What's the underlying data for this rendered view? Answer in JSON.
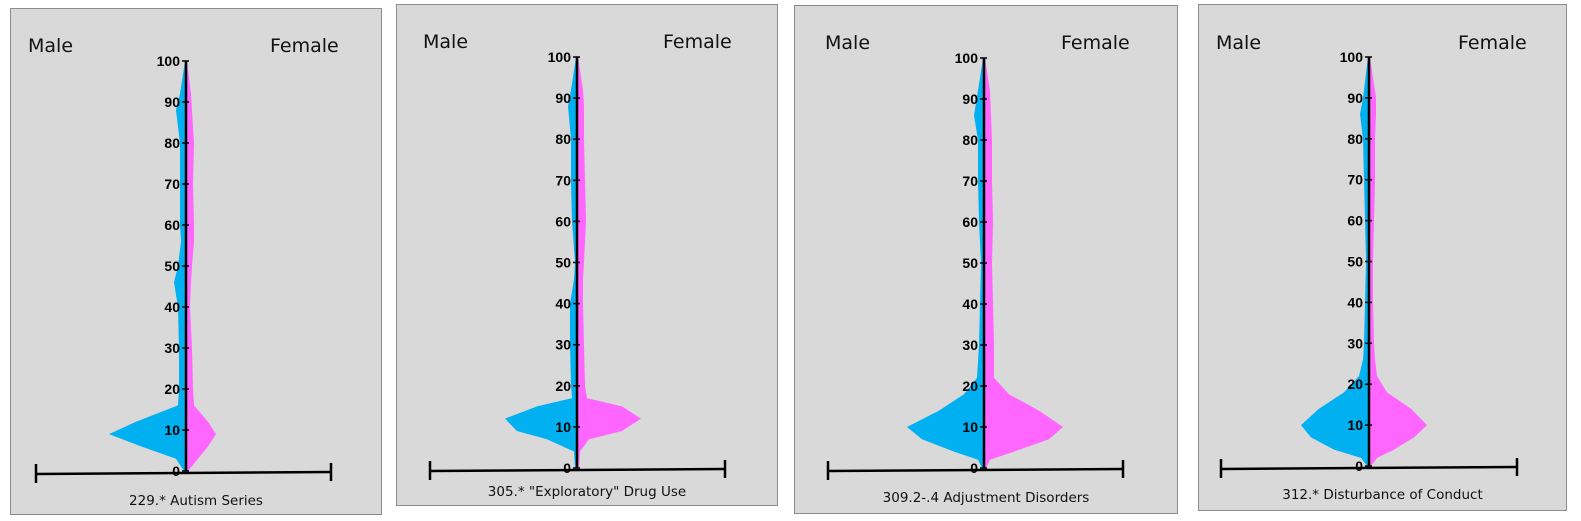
{
  "colors": {
    "male": "#00b0f0",
    "female": "#ff66ff",
    "background": "#d9d9d9",
    "axis": "#000000"
  },
  "chart_data": [
    {
      "type": "area",
      "title": "229.* Autism Series",
      "left_label": "Male",
      "right_label": "Female",
      "ylim": [
        0,
        100
      ],
      "yticks": [
        "0",
        "10",
        "20",
        "30",
        "40",
        "50",
        "60",
        "70",
        "80",
        "90",
        "100"
      ],
      "age": [
        0,
        3,
        6,
        9,
        12,
        16,
        20,
        30,
        40,
        46,
        50,
        56,
        60,
        70,
        80,
        88,
        92,
        100
      ],
      "series": [
        {
          "name": "Male",
          "values": [
            2,
            10,
            45,
            77,
            50,
            8,
            7,
            7,
            8,
            12,
            8,
            5,
            6,
            6,
            6,
            10,
            6,
            1
          ]
        },
        {
          "name": "Female",
          "values": [
            2,
            12,
            22,
            30,
            22,
            8,
            7,
            6,
            4,
            5,
            6,
            8,
            8,
            7,
            8,
            6,
            5,
            1
          ]
        }
      ]
    },
    {
      "type": "area",
      "title": "305.* \"Exploratory\" Drug Use",
      "left_label": "Male",
      "right_label": "Female",
      "ylim": [
        0,
        100
      ],
      "yticks": [
        "0",
        "10",
        "20",
        "30",
        "40",
        "50",
        "60",
        "70",
        "80",
        "90",
        "100"
      ],
      "age": [
        0,
        4,
        7,
        9,
        12,
        15,
        17,
        20,
        30,
        40,
        46,
        50,
        60,
        70,
        80,
        88,
        92,
        100
      ],
      "series": [
        {
          "name": "Male",
          "values": [
            2,
            3,
            30,
            60,
            72,
            40,
            5,
            6,
            7,
            7,
            3,
            2,
            5,
            6,
            6,
            9,
            6,
            1
          ]
        },
        {
          "name": "Female",
          "values": [
            2,
            3,
            12,
            45,
            64,
            45,
            10,
            8,
            7,
            6,
            6,
            7,
            9,
            8,
            7,
            7,
            6,
            1
          ]
        }
      ]
    },
    {
      "type": "area",
      "title": "309.2-.4 Adjustment Disorders",
      "left_label": "Male",
      "right_label": "Female",
      "ylim": [
        0,
        100
      ],
      "yticks": [
        "0",
        "10",
        "20",
        "30",
        "40",
        "50",
        "60",
        "70",
        "80",
        "90",
        "100"
      ],
      "age": [
        0,
        2,
        4,
        7,
        10,
        14,
        18,
        22,
        30,
        40,
        50,
        60,
        70,
        80,
        86,
        92,
        100
      ],
      "series": [
        {
          "name": "Male",
          "values": [
            2,
            6,
            30,
            62,
            77,
            45,
            20,
            7,
            5,
            4,
            3,
            5,
            6,
            6,
            10,
            6,
            1
          ]
        },
        {
          "name": "Female",
          "values": [
            2,
            6,
            30,
            65,
            79,
            55,
            25,
            10,
            10,
            9,
            8,
            9,
            8,
            8,
            7,
            6,
            1
          ]
        }
      ]
    },
    {
      "type": "area",
      "title": "312.* Disturbance of Conduct",
      "left_label": "Male",
      "right_label": "Female",
      "ylim": [
        0,
        100
      ],
      "yticks": [
        "0",
        "10",
        "20",
        "30",
        "40",
        "50",
        "60",
        "70",
        "80",
        "90",
        "100"
      ],
      "age": [
        0,
        2,
        4,
        7,
        10,
        14,
        18,
        22,
        26,
        30,
        40,
        50,
        60,
        70,
        80,
        86,
        90,
        100
      ],
      "series": [
        {
          "name": "Male",
          "values": [
            2,
            8,
            35,
            58,
            68,
            50,
            25,
            10,
            6,
            5,
            4,
            3,
            4,
            5,
            6,
            9,
            6,
            1
          ]
        },
        {
          "name": "Female",
          "values": [
            2,
            8,
            25,
            45,
            58,
            42,
            18,
            8,
            6,
            5,
            4,
            4,
            5,
            6,
            6,
            7,
            7,
            1
          ]
        }
      ]
    }
  ]
}
